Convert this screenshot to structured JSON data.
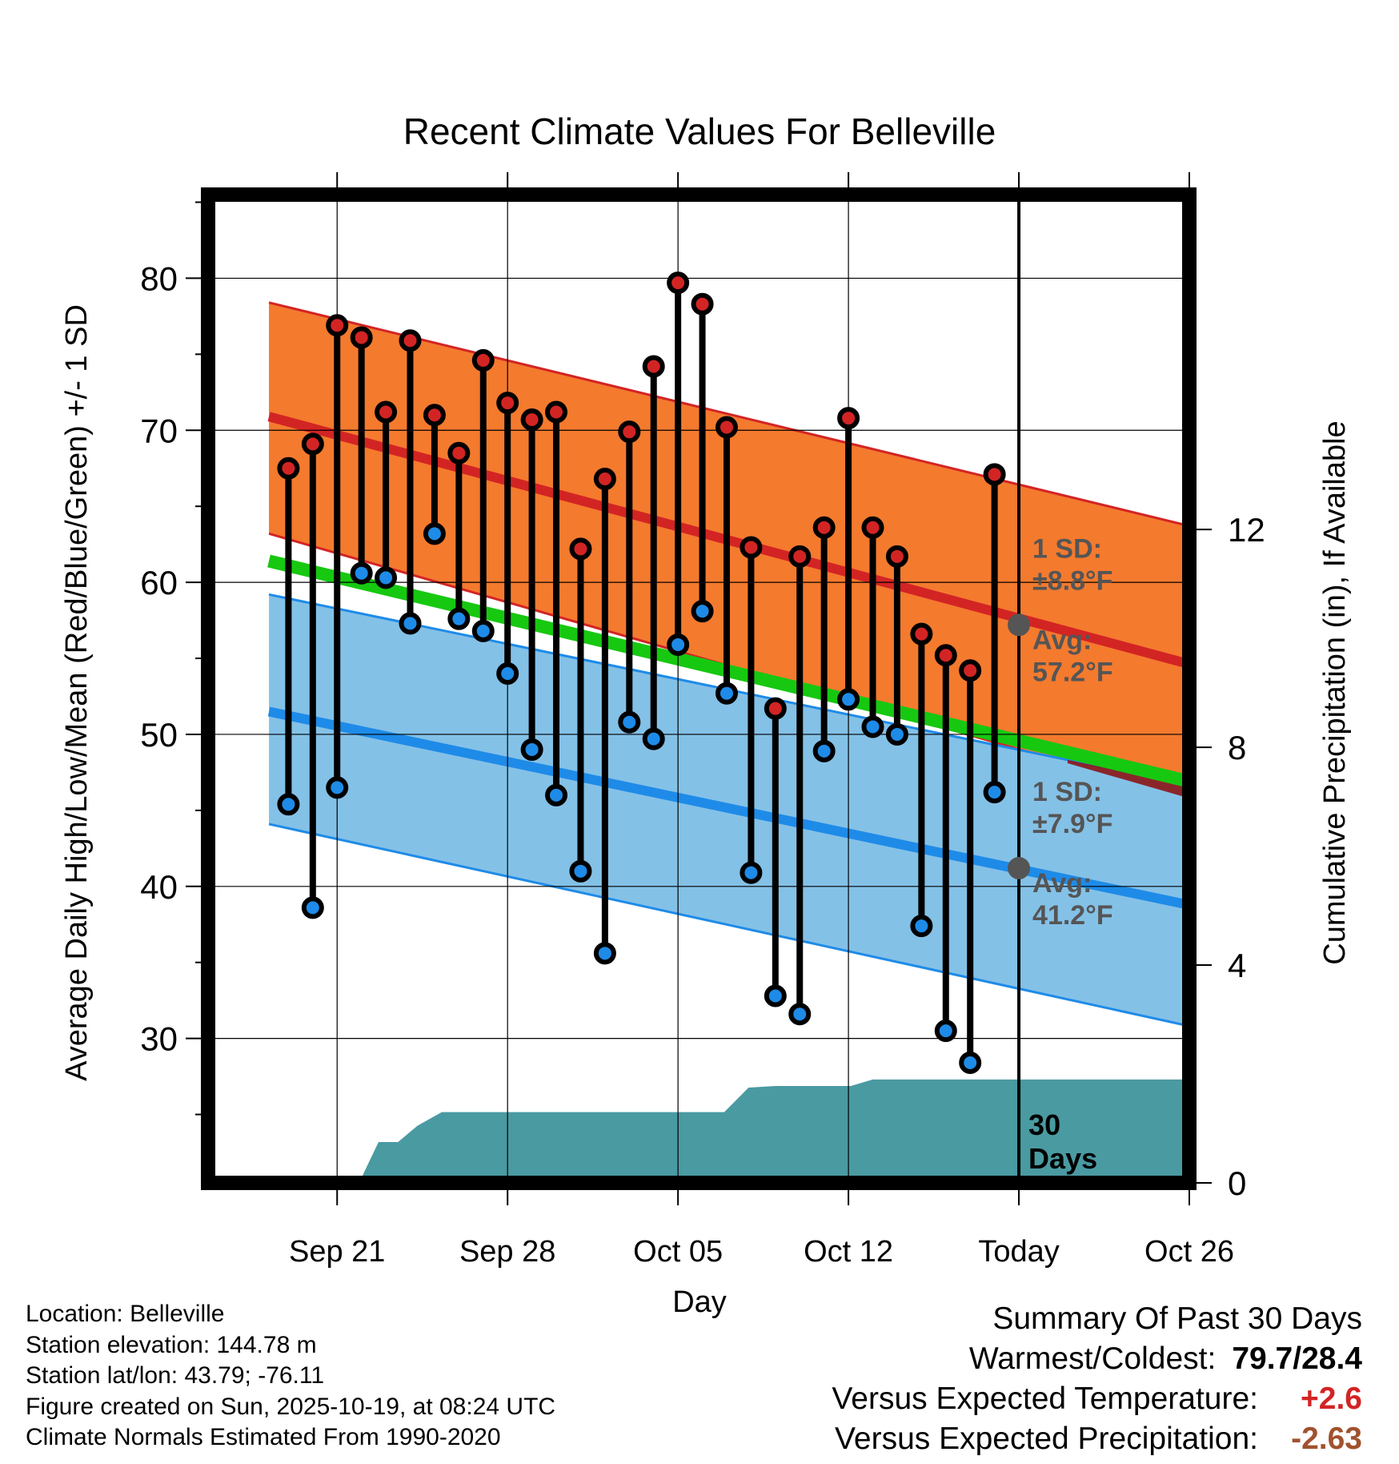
{
  "chart_data": {
    "type": "line",
    "title": "Recent Climate Values For Belleville",
    "xlabel": "Day",
    "ylabel": "Average Daily High/Low/Mean (Red/Blue/Green) +/- 1 SD",
    "y2label": "Cumulative Precipitation (in), If Available",
    "ylim": [
      20.5,
      85.5
    ],
    "y2lim": [
      0,
      18.15
    ],
    "yticks": [
      30,
      40,
      50,
      60,
      70,
      80
    ],
    "y2ticks": [
      0,
      4,
      8,
      12
    ],
    "xlim": [
      -5.3,
      35.0
    ],
    "xticks": [
      {
        "day": 0,
        "label": "Sep 21"
      },
      {
        "day": 7,
        "label": "Sep 28"
      },
      {
        "day": 14,
        "label": "Oct 05"
      },
      {
        "day": 21,
        "label": "Oct 12"
      },
      {
        "day": 28,
        "label": "Today"
      },
      {
        "day": 35,
        "label": "Oct 26"
      }
    ],
    "today_day": 28,
    "today_label": "30\nDays",
    "normals": {
      "high_mean": [
        70.9,
        53.5
      ],
      "high_upper": [
        78.4,
        62.7
      ],
      "high_lower": [
        63.2,
        44.6
      ],
      "low_mean": [
        51.5,
        37.9
      ],
      "low_upper": [
        59.2,
        45.8
      ],
      "low_lower": [
        44.1,
        29.9
      ],
      "daily_mean": [
        61.4,
        45.9
      ],
      "day_range": [
        -2.8,
        37.6
      ]
    },
    "annotations": {
      "high_sd": "1 SD:",
      "high_sd_val": "±8.8°F",
      "high_avg": "Avg:",
      "high_avg_val": "57.2°F",
      "low_sd": "1 SD:",
      "low_sd_val": "±7.9°F",
      "low_avg": "Avg:",
      "low_avg_val": "41.2°F",
      "today_high_avg": 57.2,
      "today_low_avg": 41.2
    },
    "days": [
      -2,
      -1,
      0,
      1,
      2,
      3,
      4,
      5,
      6,
      7,
      8,
      9,
      10,
      11,
      12,
      13,
      14,
      15,
      16,
      17,
      18,
      19,
      20,
      21,
      22,
      23,
      24,
      25,
      26,
      27
    ],
    "highs": [
      67.5,
      69.1,
      76.9,
      76.1,
      71.2,
      75.9,
      71.0,
      68.5,
      74.6,
      71.8,
      70.7,
      71.2,
      62.2,
      66.8,
      69.9,
      74.2,
      79.7,
      78.3,
      70.2,
      62.3,
      51.7,
      61.7,
      63.6,
      70.8,
      63.6,
      61.7,
      56.6,
      55.2,
      54.2,
      67.1
    ],
    "lows": [
      45.4,
      38.6,
      46.5,
      60.6,
      60.3,
      57.3,
      63.2,
      57.6,
      56.8,
      54.0,
      49.0,
      46.0,
      41.0,
      35.6,
      50.8,
      49.7,
      55.9,
      58.1,
      52.7,
      40.9,
      32.8,
      31.6,
      48.9,
      52.3,
      50.5,
      50.0,
      37.4,
      30.5,
      28.4,
      46.2
    ],
    "precip": {
      "days": [
        -1.5,
        0.9,
        1.7,
        2.5,
        3.3,
        4.3,
        5.2,
        6.2,
        7.0,
        8.0,
        9.0,
        10.0,
        11.0,
        12.0,
        13.0,
        14.0,
        14.9,
        15.9,
        16.9,
        18.0,
        19.9,
        21.1,
        22.0,
        23.0,
        24.0,
        25.0,
        26.0,
        27.0,
        28.0,
        32.0,
        37.6
      ],
      "values": [
        0,
        0,
        0.75,
        0.75,
        1.05,
        1.3,
        1.3,
        1.3,
        1.3,
        1.3,
        1.3,
        1.3,
        1.3,
        1.3,
        1.3,
        1.3,
        1.3,
        1.3,
        1.75,
        1.78,
        1.78,
        1.78,
        1.9,
        1.9,
        1.9,
        1.9,
        1.9,
        1.9,
        1.9,
        1.9,
        1.9
      ]
    },
    "colors": {
      "high_band": "#f47a2e",
      "high_line": "#d32424",
      "low_band": "#84c1e7",
      "low_line": "#1e8be8",
      "mean_line": "#17c811",
      "precip": "#4a9aa2",
      "high_dot": "#d32424",
      "low_dot": "#1e8be8",
      "annotation": "#555555",
      "overlap": "#8b1515"
    },
    "legend": "none"
  },
  "footer": {
    "lines": [
      "Location: Belleville",
      "Station elevation: 144.78 m",
      "Station lat/lon: 43.79; -76.11",
      "Figure created on Sun, 2025-10-19, at 08:24 UTC",
      "Climate Normals Estimated From 1990-2020"
    ]
  },
  "summary": {
    "title": "Summary Of Past 30 Days",
    "warmest_coldest_label": "Warmest/Coldest:",
    "warmest_coldest_value": "79.7/28.4",
    "temp_label": "Versus Expected Temperature:",
    "temp_value": "+2.6",
    "temp_color": "#d32424",
    "precip_label": "Versus Expected Precipitation:",
    "precip_value": "-2.63",
    "precip_color": "#a0522d"
  }
}
